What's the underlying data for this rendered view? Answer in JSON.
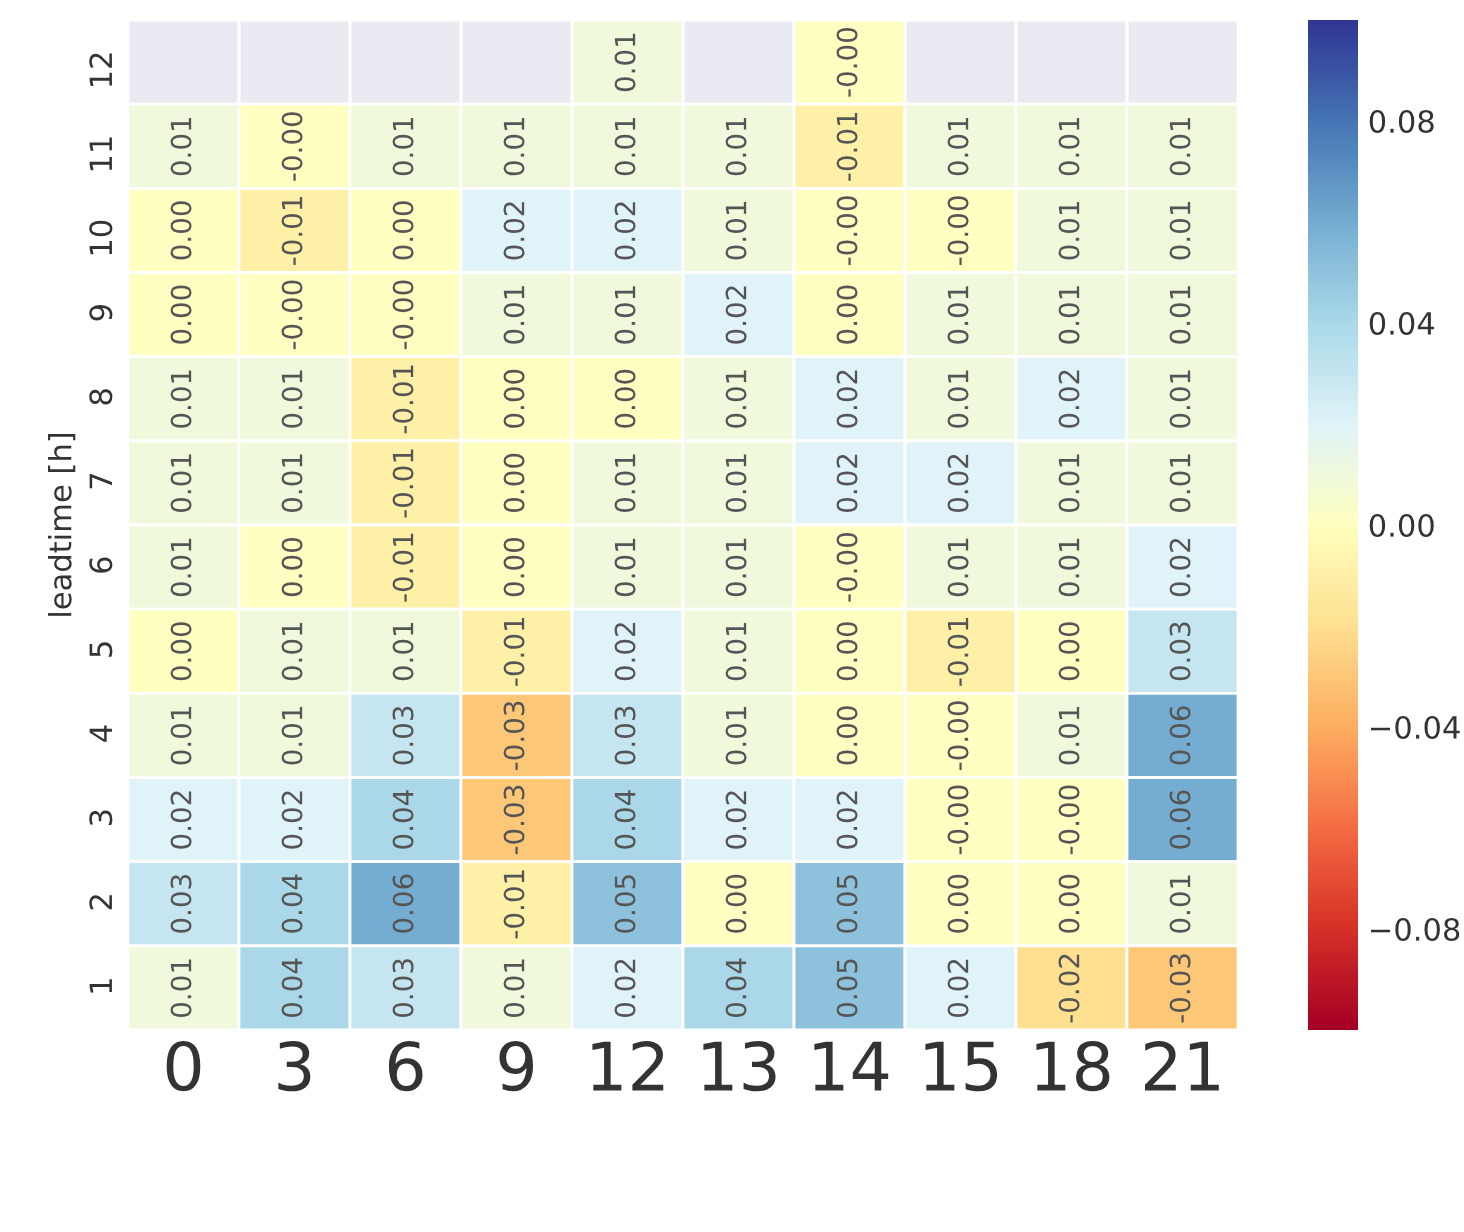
{
  "chart_data": {
    "type": "heatmap",
    "ylabel": "leadtime [h]",
    "categories": [
      "0",
      "3",
      "6",
      "9",
      "12",
      "13",
      "14",
      "15",
      "18",
      "21"
    ],
    "y_categories": [
      "12",
      "11",
      "10",
      "9",
      "8",
      "7",
      "6",
      "5",
      "4",
      "3",
      "2",
      "1"
    ],
    "cells": [
      [
        null,
        null,
        null,
        null,
        0.01,
        null,
        0.0,
        null,
        null,
        null
      ],
      [
        0.01,
        0.0,
        0.01,
        0.01,
        0.01,
        0.01,
        -0.01,
        0.01,
        0.01,
        0.01
      ],
      [
        0.0,
        -0.01,
        0.0,
        0.02,
        0.02,
        0.01,
        0.0,
        0.0,
        0.01,
        0.01
      ],
      [
        0.0,
        0.0,
        0.0,
        0.01,
        0.01,
        0.02,
        0.0,
        0.01,
        0.01,
        0.01
      ],
      [
        0.01,
        0.01,
        -0.01,
        0.0,
        0.0,
        0.01,
        0.02,
        0.01,
        0.02,
        0.01
      ],
      [
        0.01,
        0.01,
        -0.01,
        0.0,
        0.01,
        0.01,
        0.02,
        0.02,
        0.01,
        0.01
      ],
      [
        0.01,
        0.0,
        -0.01,
        0.0,
        0.01,
        0.01,
        0.0,
        0.01,
        0.01,
        0.02
      ],
      [
        0.0,
        0.01,
        0.01,
        -0.01,
        0.02,
        0.01,
        0.0,
        -0.01,
        0.0,
        0.03
      ],
      [
        0.01,
        0.01,
        0.03,
        -0.03,
        0.03,
        0.01,
        0.0,
        0.0,
        0.01,
        0.06
      ],
      [
        0.02,
        0.02,
        0.04,
        -0.03,
        0.04,
        0.02,
        0.02,
        0.0,
        0.0,
        0.06
      ],
      [
        0.03,
        0.04,
        0.06,
        -0.01,
        0.05,
        0.0,
        0.05,
        0.0,
        0.0,
        0.01
      ],
      [
        0.01,
        0.04,
        0.03,
        0.01,
        0.02,
        0.04,
        0.05,
        0.02,
        -0.02,
        -0.03
      ]
    ],
    "cell_labels": [
      [
        null,
        null,
        null,
        null,
        "0.01",
        null,
        "-0.00",
        null,
        null,
        null
      ],
      [
        "0.01",
        "-0.00",
        "0.01",
        "0.01",
        "0.01",
        "0.01",
        "-0.01",
        "0.01",
        "0.01",
        "0.01"
      ],
      [
        "0.00",
        "-0.01",
        "0.00",
        "0.02",
        "0.02",
        "0.01",
        "-0.00",
        "-0.00",
        "0.01",
        "0.01"
      ],
      [
        "0.00",
        "-0.00",
        "-0.00",
        "0.01",
        "0.01",
        "0.02",
        "0.00",
        "0.01",
        "0.01",
        "0.01"
      ],
      [
        "0.01",
        "0.01",
        "-0.01",
        "0.00",
        "0.00",
        "0.01",
        "0.02",
        "0.01",
        "0.02",
        "0.01"
      ],
      [
        "0.01",
        "0.01",
        "-0.01",
        "0.00",
        "0.01",
        "0.01",
        "0.02",
        "0.02",
        "0.01",
        "0.01"
      ],
      [
        "0.01",
        "0.00",
        "-0.01",
        "0.00",
        "0.01",
        "0.01",
        "-0.00",
        "0.01",
        "0.01",
        "0.02"
      ],
      [
        "0.00",
        "0.01",
        "0.01",
        "-0.01",
        "0.02",
        "0.01",
        "0.00",
        "-0.01",
        "0.00",
        "0.03"
      ],
      [
        "0.01",
        "0.01",
        "0.03",
        "-0.03",
        "0.03",
        "0.01",
        "0.00",
        "-0.00",
        "0.01",
        "0.06"
      ],
      [
        "0.02",
        "0.02",
        "0.04",
        "-0.03",
        "0.04",
        "0.02",
        "0.02",
        "-0.00",
        "-0.00",
        "0.06"
      ],
      [
        "0.03",
        "0.04",
        "0.06",
        "-0.01",
        "0.05",
        "0.00",
        "0.05",
        "0.00",
        "0.00",
        "0.01"
      ],
      [
        "0.01",
        "0.04",
        "0.03",
        "0.01",
        "0.02",
        "0.04",
        "0.05",
        "0.02",
        "-0.02",
        "-0.03"
      ]
    ],
    "clim": [
      -0.1,
      0.1
    ],
    "cticks": [
      {
        "value": -0.08,
        "label": "−0.08"
      },
      {
        "value": -0.04,
        "label": "−0.04"
      },
      {
        "value": 0,
        "label": "0.00"
      },
      {
        "value": 0.04,
        "label": "0.04"
      },
      {
        "value": 0.08,
        "label": "0.08"
      }
    ]
  }
}
